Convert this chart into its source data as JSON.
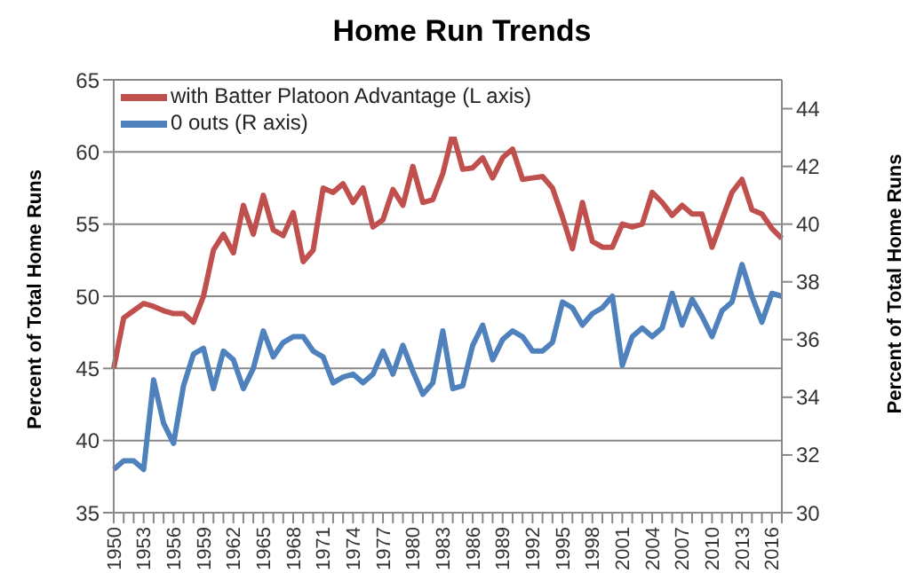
{
  "chart_data": {
    "type": "line",
    "title": "Home Run Trends",
    "ylabel": "Percent of Total Home Runs",
    "y2label": "Percent of Total Home Runs",
    "categories": [
      "1950",
      null,
      null,
      "1953",
      null,
      null,
      "1956",
      null,
      null,
      "1959",
      null,
      null,
      "1962",
      null,
      null,
      "1965",
      null,
      null,
      "1968",
      null,
      null,
      "1971",
      null,
      null,
      "1974",
      null,
      null,
      "1977",
      null,
      null,
      "1980",
      null,
      null,
      "1983",
      null,
      null,
      "1986",
      null,
      null,
      "1989",
      null,
      null,
      "1992",
      null,
      null,
      "1995",
      null,
      null,
      "1998",
      null,
      null,
      "2001",
      null,
      null,
      "2004",
      null,
      null,
      "2007",
      null,
      null,
      "2010",
      null,
      null,
      "2013",
      null,
      null,
      "2016",
      null
    ],
    "series": [
      {
        "name": "with Batter Platoon Advantage (L axis)",
        "color": "#c0504d",
        "values": [
          45,
          48.5,
          49,
          49.5,
          49.3,
          49,
          48.8,
          48.8,
          48.2,
          50,
          53.2,
          54.3,
          53,
          56.3,
          54.3,
          57,
          54.6,
          54.2,
          55.8,
          52.4,
          53.2,
          57.5,
          57.2,
          57.8,
          56.5,
          57.5,
          54.8,
          55.3,
          57.4,
          56.3,
          59,
          56.5,
          56.7,
          58.5,
          61.3,
          58.8,
          58.9,
          59.6,
          58.2,
          59.6,
          60.2,
          58.1,
          58.2,
          58.3,
          57.5,
          55.5,
          53.3,
          56.5,
          53.8,
          53.4,
          53.4,
          55,
          54.8,
          55,
          57.2,
          56.5,
          55.6,
          56.3,
          55.7,
          55.7,
          53.4,
          55.3,
          57.2,
          58.1,
          56,
          55.7,
          54.7,
          54
        ]
      },
      {
        "name": "0 outs (R axis)",
        "color": "#4f81bd",
        "axis": "y2",
        "values": [
          31.5,
          31.8,
          31.8,
          31.5,
          34.6,
          33.1,
          32.4,
          34.4,
          35.5,
          35.7,
          34.3,
          35.6,
          35.3,
          34.3,
          35,
          36.3,
          35.4,
          35.9,
          36.1,
          36.1,
          35.6,
          35.4,
          34.5,
          34.7,
          34.8,
          34.5,
          34.8,
          35.6,
          34.8,
          35.8,
          34.9,
          34.1,
          34.5,
          36.3,
          34.3,
          34.4,
          35.8,
          36.5,
          35.3,
          36,
          36.3,
          36.1,
          35.6,
          35.6,
          35.9,
          37.3,
          37.1,
          36.5,
          36.9,
          37.1,
          37.5,
          35.1,
          36.1,
          36.4,
          36.1,
          36.4,
          37.6,
          36.5,
          37.4,
          36.8,
          36.1,
          37,
          37.3,
          38.6,
          37.5,
          36.6,
          37.6,
          37.5
        ]
      }
    ],
    "ylim": [
      35,
      65
    ],
    "yticks": [
      35,
      40,
      45,
      50,
      55,
      60,
      65
    ],
    "y2lim": [
      30,
      45
    ],
    "y2ticks": [
      30,
      32,
      34,
      36,
      38,
      40,
      42,
      44
    ],
    "grid": "y",
    "legend": "top left",
    "marker": "none",
    "line_style": "solid"
  }
}
